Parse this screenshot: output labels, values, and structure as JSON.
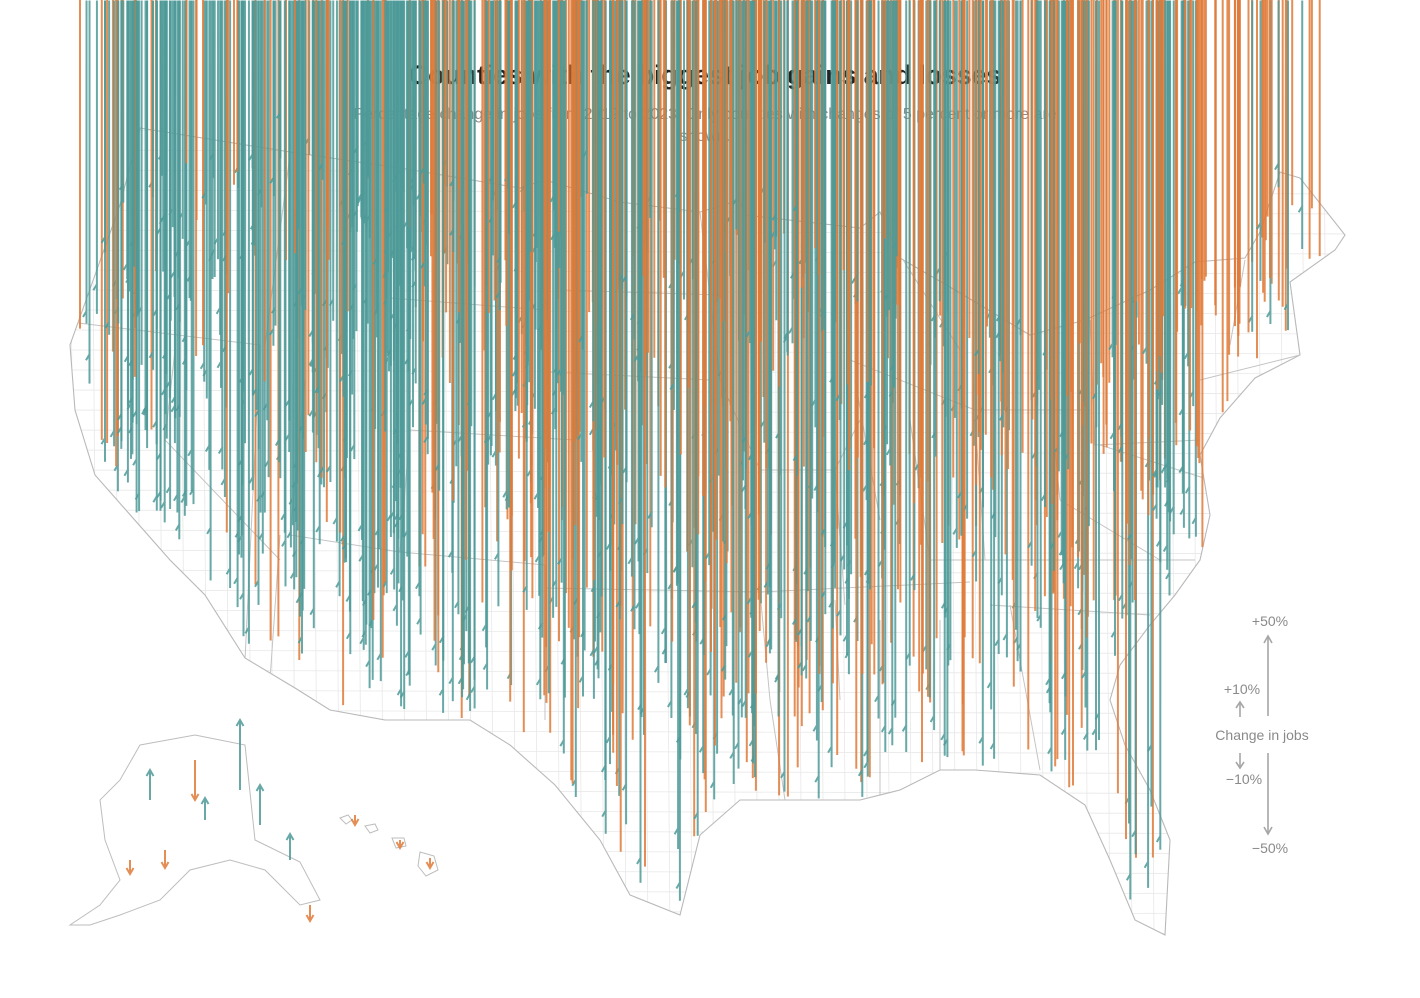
{
  "title": "Counties with the biggest job gains and losses",
  "subtitle": "Percentage change in jobs from 2019 to 2023. Only counties with changes of 5 percent or more are shown.",
  "colors": {
    "gain": "#4e9a98",
    "loss": "#e07b39",
    "border": "#bdbdbd",
    "county": "#e6e6e6",
    "legend": "#a6a6a6"
  },
  "legend": {
    "title": "Change in jobs",
    "labels": [
      "+50%",
      "+10%",
      "−10%",
      "−50%"
    ]
  }
}
